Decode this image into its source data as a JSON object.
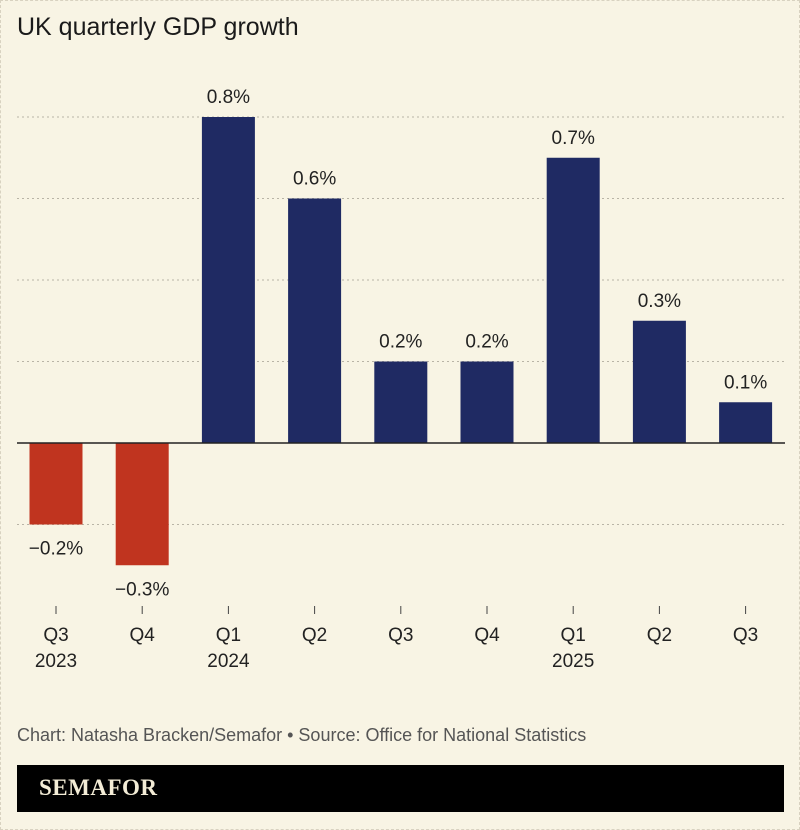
{
  "chart_data": {
    "type": "bar",
    "title": "UK quarterly GDP growth",
    "categories": [
      "Q3 2023",
      "Q4 2023",
      "Q1 2024",
      "Q2 2024",
      "Q3 2024",
      "Q4 2024",
      "Q1 2025",
      "Q2 2025",
      "Q3 2025"
    ],
    "tick_labels": [
      [
        "Q3",
        "2023"
      ],
      [
        "Q4",
        ""
      ],
      [
        "Q1",
        "2024"
      ],
      [
        "Q2",
        ""
      ],
      [
        "Q3",
        ""
      ],
      [
        "Q4",
        ""
      ],
      [
        "Q1",
        "2025"
      ],
      [
        "Q2",
        ""
      ],
      [
        "Q3",
        ""
      ]
    ],
    "values": [
      -0.2,
      -0.3,
      0.8,
      0.6,
      0.2,
      0.2,
      0.7,
      0.3,
      0.1
    ],
    "data_labels": [
      "−0.2%",
      "−0.3%",
      "0.8%",
      "0.6%",
      "0.2%",
      "0.2%",
      "0.7%",
      "0.3%",
      "0.1%"
    ],
    "ylim": [
      -0.3,
      0.8
    ],
    "gridlines": [
      -0.2,
      0.2,
      0.4,
      0.6,
      0.8
    ],
    "grid": true,
    "colors": {
      "positive": "#1f2a63",
      "negative": "#c0341f",
      "grid": "#b9b4a6",
      "axis": "#222222"
    }
  },
  "credit": "Chart: Natasha Bracken/Semafor • Source: Office for National Statistics",
  "brand": "SEMAFOR"
}
